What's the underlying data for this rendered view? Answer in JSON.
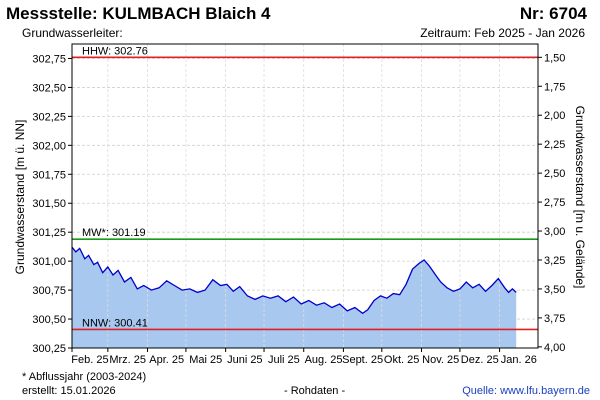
{
  "header": {
    "title": "Messstelle: KULMBACH Blaich 4",
    "number": "Nr: 6704",
    "aquifer": "Grundwasserleiter:",
    "period": "Zeitraum: Feb 2025 - Jan 2026"
  },
  "footer": {
    "note": "* Abflussjahr (2003-2024)",
    "created": "erstellt:  15.01.2026",
    "raw": "- Rohdaten -",
    "source": "Quelle: www.lfu.bayern.de"
  },
  "chart_data": {
    "type": "area",
    "ylabel": "Grundwasserstand [m ü. NN]",
    "y2label": "Grundwasserstand [m u. Gelände]",
    "ylim": [
      300.25,
      302.875
    ],
    "y2_offset": 304.26,
    "yticks": [
      "302,75",
      "302,50",
      "302,25",
      "302,00",
      "301,75",
      "301,50",
      "301,25",
      "301,00",
      "300,75",
      "300,50",
      "300,25"
    ],
    "ytick_values": [
      302.75,
      302.5,
      302.25,
      302.0,
      301.75,
      301.5,
      301.25,
      301.0,
      300.75,
      300.5,
      300.25
    ],
    "y2ticks": [
      "1,50",
      "1,75",
      "2,00",
      "2,25",
      "2,50",
      "2,75",
      "3,00",
      "3,25",
      "3,50",
      "3,75",
      "4,00"
    ],
    "y2tick_values": [
      1.5,
      1.75,
      2.0,
      2.25,
      2.5,
      2.75,
      3.0,
      3.25,
      3.5,
      3.75,
      4.0
    ],
    "xticks": [
      "Feb. 25",
      "Mrz. 25",
      "Apr. 25",
      "Mai 25",
      "Juni 25",
      "Juli 25",
      "Aug. 25",
      "Sept. 25",
      "Okt. 25",
      "Nov. 25",
      "Dez. 25",
      "Jan. 26"
    ],
    "x_range": [
      "2025-02-01",
      "2026-01-31"
    ],
    "grid": true,
    "fill_color": "#a8c8f0",
    "line_color": "#0000cc",
    "reference_lines": [
      {
        "label": "HHW: 302.76",
        "value": 302.76,
        "color": "#e02020"
      },
      {
        "label": "MW*: 301.19",
        "value": 301.19,
        "color": "#1a9a1a"
      },
      {
        "label": "NNW: 300.41",
        "value": 300.41,
        "color": "#e02020"
      }
    ],
    "series": [
      {
        "dates": [
          "2025-02-01",
          "2025-02-04",
          "2025-02-07",
          "2025-02-11",
          "2025-02-14",
          "2025-02-18",
          "2025-02-21",
          "2025-02-25",
          "2025-03-01",
          "2025-03-05",
          "2025-03-09",
          "2025-03-14",
          "2025-03-19",
          "2025-03-24",
          "2025-03-29",
          "2025-04-04",
          "2025-04-10",
          "2025-04-16",
          "2025-04-22",
          "2025-04-28",
          "2025-05-04",
          "2025-05-10",
          "2025-05-16",
          "2025-05-22",
          "2025-05-28",
          "2025-06-02",
          "2025-06-07",
          "2025-06-12",
          "2025-06-18",
          "2025-06-24",
          "2025-06-30",
          "2025-07-06",
          "2025-07-12",
          "2025-07-18",
          "2025-07-24",
          "2025-07-30",
          "2025-08-05",
          "2025-08-11",
          "2025-08-17",
          "2025-08-23",
          "2025-08-29",
          "2025-09-04",
          "2025-09-10",
          "2025-09-16",
          "2025-09-20",
          "2025-09-25",
          "2025-09-30",
          "2025-10-05",
          "2025-10-10",
          "2025-10-15",
          "2025-10-20",
          "2025-10-25",
          "2025-10-30",
          "2025-11-03",
          "2025-11-07",
          "2025-11-12",
          "2025-11-16",
          "2025-11-21",
          "2025-11-26",
          "2025-12-01",
          "2025-12-06",
          "2025-12-11",
          "2025-12-16",
          "2025-12-21",
          "2025-12-26",
          "2025-12-31",
          "2026-01-05",
          "2026-01-08",
          "2026-01-11",
          "2026-01-14"
        ],
        "values": [
          301.12,
          301.08,
          301.11,
          301.02,
          301.05,
          300.97,
          300.99,
          300.9,
          300.95,
          300.88,
          300.92,
          300.82,
          300.86,
          300.76,
          300.79,
          300.75,
          300.77,
          300.83,
          300.79,
          300.75,
          300.76,
          300.73,
          300.75,
          300.84,
          300.79,
          300.8,
          300.74,
          300.78,
          300.7,
          300.67,
          300.7,
          300.68,
          300.7,
          300.65,
          300.69,
          300.63,
          300.66,
          300.62,
          300.64,
          300.6,
          300.63,
          300.57,
          300.6,
          300.55,
          300.58,
          300.66,
          300.7,
          300.68,
          300.72,
          300.71,
          300.8,
          300.93,
          300.98,
          301.01,
          300.96,
          300.88,
          300.82,
          300.77,
          300.74,
          300.76,
          300.82,
          300.77,
          300.8,
          300.74,
          300.79,
          300.85,
          300.77,
          300.73,
          300.76,
          300.73
        ]
      }
    ]
  }
}
